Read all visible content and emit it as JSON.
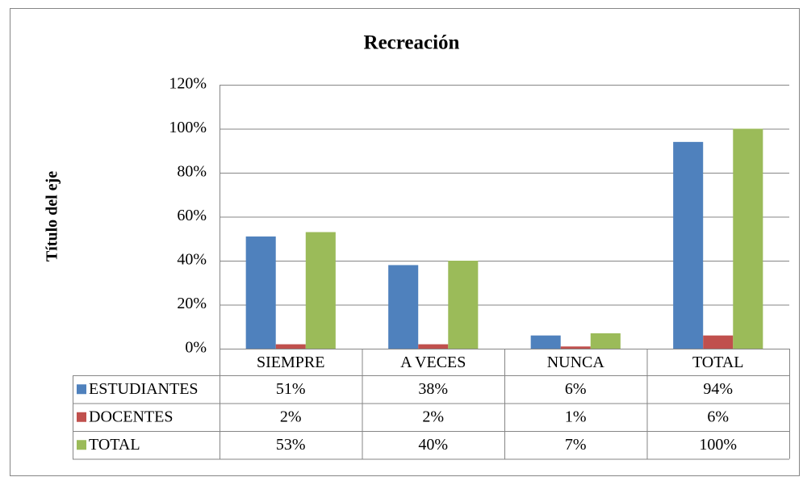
{
  "chart_data": {
    "type": "bar",
    "title": "Recreación",
    "y_axis_label": "Título del eje",
    "categories": [
      "SIEMPRE",
      "A VECES",
      "NUNCA",
      "TOTAL"
    ],
    "series": [
      {
        "name": "ESTUDIANTES",
        "color": "#4f81bd",
        "values": [
          51,
          38,
          6,
          94
        ],
        "value_labels": [
          "51%",
          "38%",
          "6%",
          "94%"
        ]
      },
      {
        "name": "DOCENTES",
        "color": "#c0504d",
        "values": [
          2,
          2,
          1,
          6
        ],
        "value_labels": [
          "2%",
          "2%",
          "1%",
          "6%"
        ]
      },
      {
        "name": "TOTAL",
        "color": "#9bbb59",
        "values": [
          53,
          40,
          7,
          100
        ],
        "value_labels": [
          "53%",
          "40%",
          "7%",
          "100%"
        ]
      }
    ],
    "ylim": [
      0,
      120
    ],
    "yticks": [
      {
        "value": 0,
        "label": "0%"
      },
      {
        "value": 20,
        "label": "20%"
      },
      {
        "value": 40,
        "label": "40%"
      },
      {
        "value": 60,
        "label": "60%"
      },
      {
        "value": 80,
        "label": "80%"
      },
      {
        "value": 100,
        "label": "100%"
      },
      {
        "value": 120,
        "label": "120%"
      }
    ],
    "grid": true,
    "data_table": true
  }
}
